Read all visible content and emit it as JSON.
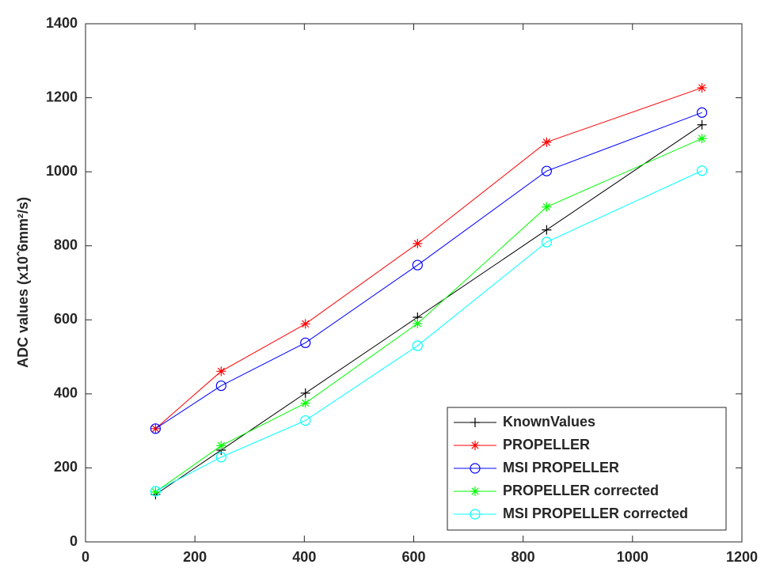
{
  "chart_data": {
    "type": "line",
    "y_label": "ADC values (x10ˆ6mm²/s)",
    "x": [
      128,
      248,
      402,
      607,
      843,
      1127
    ],
    "series": [
      {
        "name": "KnownValues",
        "color": "#000000",
        "marker": "+",
        "values": [
          128,
          248,
          402,
          607,
          843,
          1127
        ]
      },
      {
        "name": "PROPELLER",
        "color": "#ff0000",
        "marker": "*",
        "values": [
          306,
          461,
          589,
          806,
          1080,
          1227
        ]
      },
      {
        "name": "MSI PROPELLER",
        "color": "#0000ff",
        "marker": "o",
        "values": [
          306,
          422,
          538,
          748,
          1002,
          1160
        ]
      },
      {
        "name": "PROPELLER corrected",
        "color": "#00ff00",
        "marker": "*",
        "values": [
          135,
          260,
          375,
          590,
          905,
          1090
        ]
      },
      {
        "name": "MSI PROPELLER corrected",
        "color": "#00ffff",
        "marker": "o",
        "values": [
          137,
          229,
          328,
          530,
          810,
          1003
        ]
      }
    ],
    "xlim": [
      0,
      1200
    ],
    "xticks": [
      0,
      200,
      400,
      600,
      800,
      1000,
      1200
    ],
    "ylim": [
      0,
      1400
    ],
    "yticks": [
      0,
      200,
      400,
      600,
      800,
      1000,
      1200,
      1400
    ],
    "grid": false,
    "legend_position": "southeast"
  }
}
